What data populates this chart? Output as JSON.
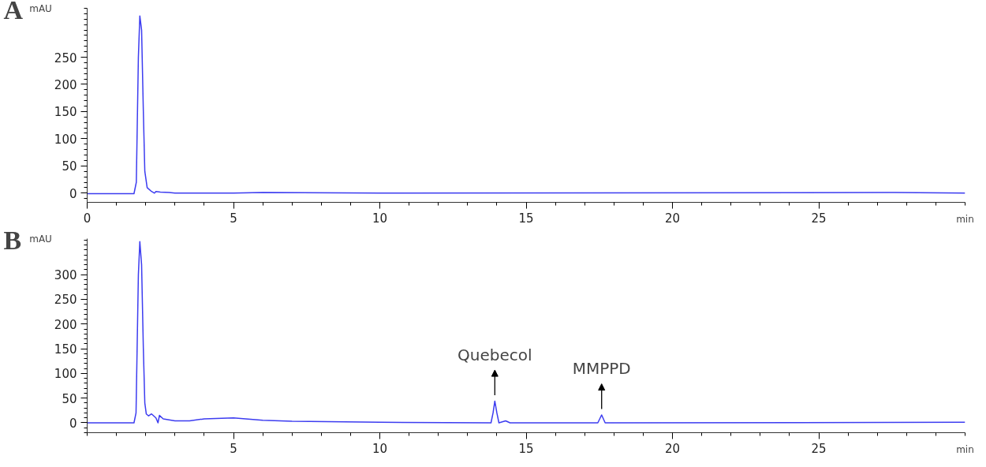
{
  "chart_data": [
    {
      "type": "line",
      "title": "A",
      "xlabel": "min",
      "ylabel": "mAU",
      "color": "#3c3cf0",
      "xlim": [
        0,
        30
      ],
      "ylim": [
        -17,
        340
      ],
      "xticks": [
        0,
        5,
        10,
        15,
        20,
        25
      ],
      "yticks": [
        0,
        50,
        100,
        150,
        200,
        250
      ],
      "grid": false,
      "x": [
        0,
        1.6,
        1.68,
        1.75,
        1.8,
        1.86,
        1.92,
        1.97,
        2.05,
        2.2,
        2.3,
        2.35,
        2.5,
        2.8,
        3,
        5,
        6,
        10,
        27.4,
        27.6,
        30
      ],
      "values": [
        -1,
        -1,
        20,
        250,
        326,
        300,
        150,
        40,
        10,
        3,
        0,
        3,
        2,
        1,
        0,
        0,
        1,
        0,
        1,
        1,
        0
      ]
    },
    {
      "type": "line",
      "title": "B",
      "xlabel": "min",
      "ylabel": "mAU",
      "color": "#3c3cf0",
      "xlim": [
        0,
        30
      ],
      "ylim": [
        -20,
        373
      ],
      "xticks": [
        5,
        10,
        15,
        20,
        25
      ],
      "yticks": [
        0,
        50,
        100,
        150,
        200,
        250,
        300
      ],
      "grid": false,
      "x": [
        0,
        1.6,
        1.67,
        1.75,
        1.8,
        1.86,
        1.92,
        1.97,
        2.02,
        2.1,
        2.2,
        2.35,
        2.42,
        2.47,
        2.6,
        3,
        3.5,
        4,
        5,
        6,
        7,
        10,
        13.8,
        13.87,
        13.93,
        14,
        14.07,
        14.3,
        14.45,
        17.45,
        17.58,
        17.7,
        30
      ],
      "values": [
        0,
        0,
        20,
        300,
        367,
        320,
        150,
        40,
        18,
        14,
        18,
        10,
        0,
        15,
        8,
        4,
        4,
        8,
        10,
        5,
        3,
        1,
        0,
        20,
        44,
        20,
        0,
        4,
        0,
        0,
        16,
        0,
        1
      ],
      "annotations": [
        {
          "text": "Quebecol",
          "x": 13.93,
          "y": 44
        },
        {
          "text": "MMPPD",
          "x": 17.58,
          "y": 16
        }
      ]
    }
  ]
}
